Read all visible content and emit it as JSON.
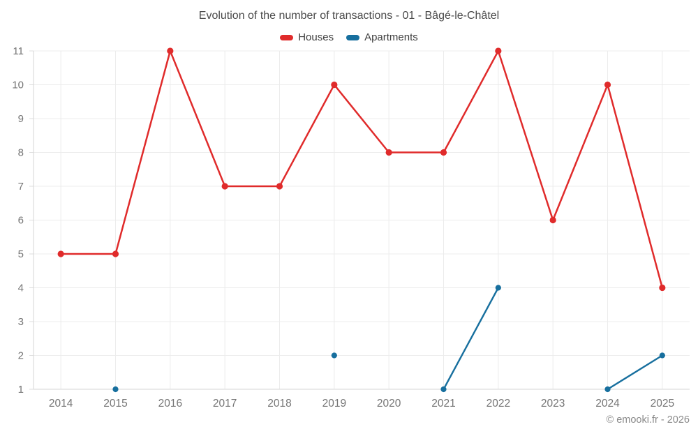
{
  "title": "Evolution of the number of transactions - 01 - Bâgé-le-Châtel",
  "legend": [
    {
      "label": "Houses",
      "color": "#e02b2b"
    },
    {
      "label": "Apartments",
      "color": "#176f9e"
    }
  ],
  "footer": "© emooki.fr - 2026",
  "chart_data": {
    "type": "line",
    "title": "Evolution of the number of transactions - 01 - Bâgé-le-Châtel",
    "categories": [
      "2014",
      "2015",
      "2016",
      "2017",
      "2018",
      "2019",
      "2020",
      "2021",
      "2022",
      "2023",
      "2024",
      "2025"
    ],
    "series": [
      {
        "name": "Houses",
        "color": "#e02b2b",
        "marker_radius": 4.6,
        "line_width": 2.5,
        "values": [
          5,
          5,
          11,
          7,
          7,
          10,
          8,
          8,
          11,
          6,
          10,
          4
        ]
      },
      {
        "name": "Apartments",
        "color": "#176f9e",
        "marker_radius": 4.1,
        "line_width": 2.4,
        "values": [
          null,
          1,
          null,
          null,
          null,
          2,
          null,
          1,
          4,
          null,
          1,
          2
        ]
      }
    ],
    "xlabel": "",
    "ylabel": "",
    "ylim": [
      1,
      11
    ],
    "yticks": [
      1,
      2,
      3,
      4,
      5,
      6,
      7,
      8,
      9,
      10,
      11
    ],
    "grid": true,
    "legend_position": "top",
    "colors": {
      "grid_line": "#ececec",
      "axis_line": "#d6d6d6",
      "tick_mark": "#dedede",
      "tick_label": "#757575"
    }
  }
}
